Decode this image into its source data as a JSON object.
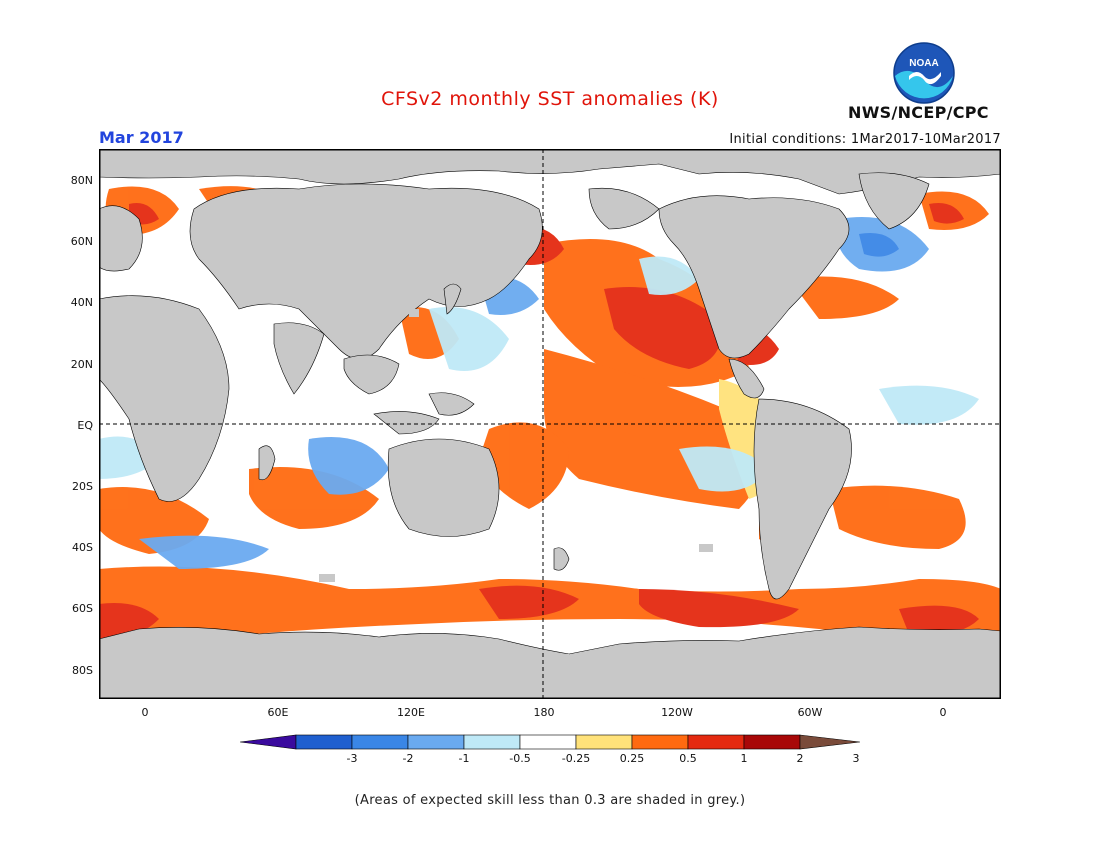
{
  "header": {
    "title": "CFSv2 monthly SST anomalies (K)",
    "month": "Mar 2017",
    "initial_conditions": "Initial conditions: 1Mar2017-10Mar2017",
    "agency": "NWS/NCEP/CPC",
    "logo_text": "NOAA"
  },
  "map": {
    "lat_labels": [
      "80N",
      "60N",
      "40N",
      "20N",
      "EQ",
      "20S",
      "40S",
      "60S",
      "80S"
    ],
    "lon_labels": [
      "0",
      "60E",
      "120E",
      "180",
      "120W",
      "60W",
      "0"
    ],
    "land_color": "#c8c8c8",
    "ocean_base_color": "#ffffff"
  },
  "colorbar": {
    "ticks": [
      "-3",
      "-2",
      "-1",
      "-0.5",
      "-0.25",
      "0.25",
      "0.5",
      "1",
      "2",
      "3"
    ],
    "colors": [
      "#3a0a9e",
      "#1f5fcf",
      "#3a86e6",
      "#6aaaf0",
      "#bfe9f7",
      "#ffffff",
      "#ffe27a",
      "#ff6a10",
      "#e42a10",
      "#a80808",
      "#7a4b3a"
    ]
  },
  "footer": {
    "note": "(Areas of expected skill less than 0.3 are shaded in grey.)"
  }
}
